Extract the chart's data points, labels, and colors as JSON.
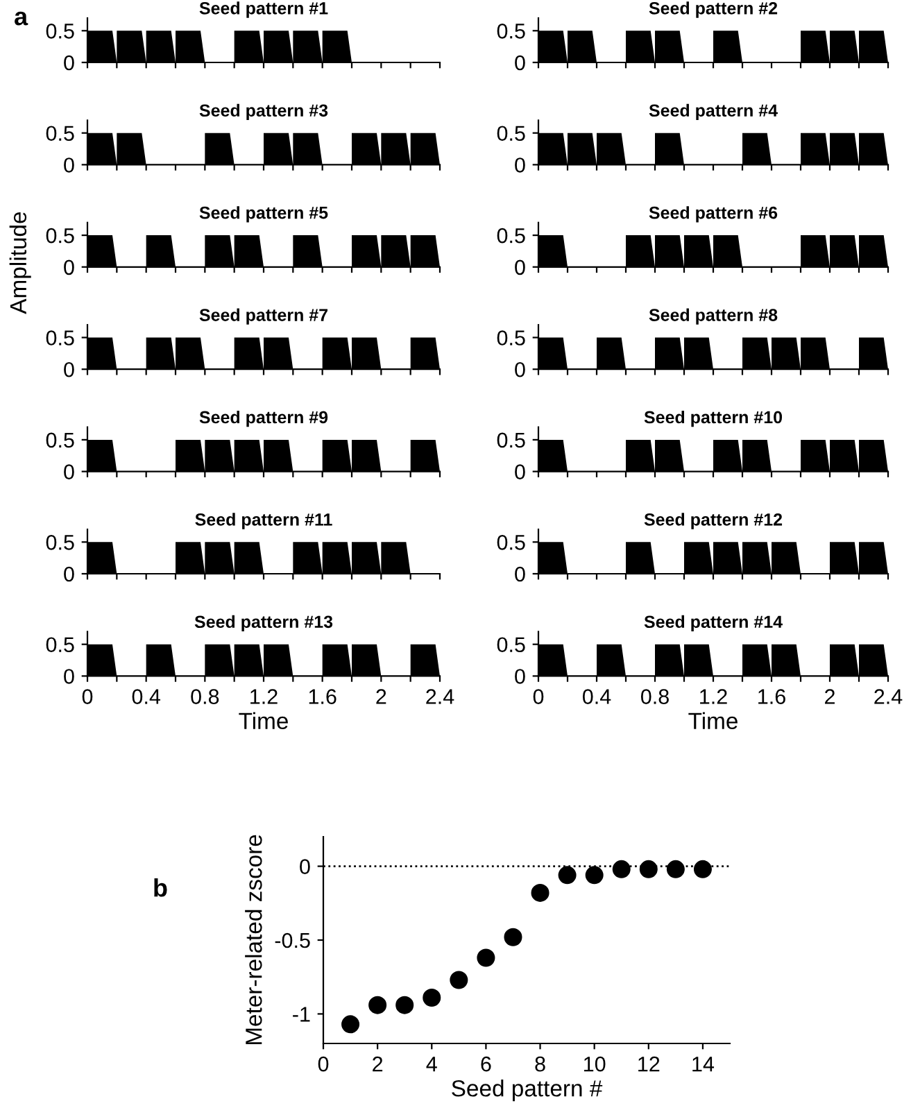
{
  "chart_data": [
    {
      "type": "area",
      "title": "Seed pattern #1",
      "annotations": [
        "a"
      ],
      "xlim": [
        0,
        2.4
      ],
      "ylim": [
        0,
        0.7
      ],
      "yticks": [
        0,
        0.5
      ],
      "xticks": [
        0,
        {
          "value": 0.2,
          "label": null
        },
        0.4,
        {
          "value": 0.6,
          "label": null
        },
        0.8,
        {
          "value": 1,
          "label": null
        },
        1.2,
        {
          "value": 1.4,
          "label": null
        },
        1.6,
        {
          "value": 1.8,
          "label": null
        },
        2,
        {
          "value": 2.2,
          "label": null
        },
        2.4
      ],
      "tick_labels": "y",
      "series": [
        {
          "color": "#000000",
          "x": [
            0,
            0,
            0.17,
            0.2,
            0.2,
            0.2,
            0.37,
            0.4,
            0.4,
            0.4,
            0.57,
            0.6,
            0.6,
            0.6,
            0.77,
            0.8,
            1,
            1,
            1.17,
            1.2,
            1.2,
            1.2,
            1.37,
            1.4,
            1.4,
            1.4,
            1.57,
            1.6,
            1.6,
            1.6,
            1.77,
            1.8
          ],
          "values": [
            0,
            0.5,
            0.5,
            0,
            0,
            0.5,
            0.5,
            0,
            0,
            0.5,
            0.5,
            0,
            0,
            0.5,
            0.5,
            0,
            0,
            0.5,
            0.5,
            0,
            0,
            0.5,
            0.5,
            0,
            0,
            0.5,
            0.5,
            0,
            0,
            0.5,
            0.5,
            0
          ]
        }
      ]
    },
    {
      "type": "area",
      "title": "Seed pattern #2",
      "xlim": [
        0,
        2.4
      ],
      "ylim": [
        0,
        0.7
      ],
      "yticks": [
        0,
        0.5
      ],
      "xticks": [
        0,
        {
          "value": 0.2,
          "label": null
        },
        0.4,
        {
          "value": 0.6,
          "label": null
        },
        0.8,
        {
          "value": 1,
          "label": null
        },
        1.2,
        {
          "value": 1.4,
          "label": null
        },
        1.6,
        {
          "value": 1.8,
          "label": null
        },
        2,
        {
          "value": 2.2,
          "label": null
        },
        2.4
      ],
      "tick_labels": "y",
      "series": [
        {
          "color": "#000000",
          "x": [
            0,
            0,
            0.17,
            0.2,
            0.2,
            0.2,
            0.37,
            0.4,
            0.6,
            0.6,
            0.77,
            0.8,
            0.8,
            0.8,
            0.97,
            1,
            1.2,
            1.2,
            1.37,
            1.4,
            1.8,
            1.8,
            1.97,
            2,
            2,
            2,
            2.17,
            2.2,
            2.2,
            2.2,
            2.37,
            2.4
          ],
          "values": [
            0,
            0.5,
            0.5,
            0,
            0,
            0.5,
            0.5,
            0,
            0,
            0.5,
            0.5,
            0,
            0,
            0.5,
            0.5,
            0,
            0,
            0.5,
            0.5,
            0,
            0,
            0.5,
            0.5,
            0,
            0,
            0.5,
            0.5,
            0,
            0,
            0.5,
            0.5,
            0
          ]
        }
      ]
    },
    {
      "type": "area",
      "title": "Seed pattern #3",
      "xlim": [
        0,
        2.4
      ],
      "ylim": [
        0,
        0.7
      ],
      "yticks": [
        0,
        0.5
      ],
      "xticks": [
        0,
        {
          "value": 0.2,
          "label": null
        },
        0.4,
        {
          "value": 0.6,
          "label": null
        },
        0.8,
        {
          "value": 1,
          "label": null
        },
        1.2,
        {
          "value": 1.4,
          "label": null
        },
        1.6,
        {
          "value": 1.8,
          "label": null
        },
        2,
        {
          "value": 2.2,
          "label": null
        },
        2.4
      ],
      "tick_labels": "y",
      "series": [
        {
          "color": "#000000",
          "x": [
            0,
            0,
            0.17,
            0.2,
            0.2,
            0.2,
            0.37,
            0.4,
            0.8,
            0.8,
            0.97,
            1,
            1.2,
            1.2,
            1.37,
            1.4,
            1.4,
            1.4,
            1.57,
            1.6,
            1.8,
            1.8,
            1.97,
            2,
            2,
            2,
            2.17,
            2.2,
            2.2,
            2.2,
            2.37,
            2.4
          ],
          "values": [
            0,
            0.5,
            0.5,
            0,
            0,
            0.5,
            0.5,
            0,
            0,
            0.5,
            0.5,
            0,
            0,
            0.5,
            0.5,
            0,
            0,
            0.5,
            0.5,
            0,
            0,
            0.5,
            0.5,
            0,
            0,
            0.5,
            0.5,
            0,
            0,
            0.5,
            0.5,
            0
          ]
        }
      ]
    },
    {
      "type": "area",
      "title": "Seed pattern #4",
      "xlim": [
        0,
        2.4
      ],
      "ylim": [
        0,
        0.7
      ],
      "yticks": [
        0,
        0.5
      ],
      "xticks": [
        0,
        {
          "value": 0.2,
          "label": null
        },
        0.4,
        {
          "value": 0.6,
          "label": null
        },
        0.8,
        {
          "value": 1,
          "label": null
        },
        1.2,
        {
          "value": 1.4,
          "label": null
        },
        1.6,
        {
          "value": 1.8,
          "label": null
        },
        2,
        {
          "value": 2.2,
          "label": null
        },
        2.4
      ],
      "tick_labels": "y",
      "series": [
        {
          "color": "#000000",
          "x": [
            0,
            0,
            0.17,
            0.2,
            0.2,
            0.2,
            0.37,
            0.4,
            0.4,
            0.4,
            0.57,
            0.6,
            0.8,
            0.8,
            0.97,
            1,
            1.4,
            1.4,
            1.57,
            1.6,
            1.8,
            1.8,
            1.97,
            2,
            2,
            2,
            2.17,
            2.2,
            2.2,
            2.2,
            2.37,
            2.4
          ],
          "values": [
            0,
            0.5,
            0.5,
            0,
            0,
            0.5,
            0.5,
            0,
            0,
            0.5,
            0.5,
            0,
            0,
            0.5,
            0.5,
            0,
            0,
            0.5,
            0.5,
            0,
            0,
            0.5,
            0.5,
            0,
            0,
            0.5,
            0.5,
            0,
            0,
            0.5,
            0.5,
            0
          ]
        }
      ]
    },
    {
      "type": "area",
      "title": "Seed pattern #5",
      "xlim": [
        0,
        2.4
      ],
      "ylim": [
        0,
        0.7
      ],
      "yticks": [
        0,
        0.5
      ],
      "xticks": [
        0,
        {
          "value": 0.2,
          "label": null
        },
        0.4,
        {
          "value": 0.6,
          "label": null
        },
        0.8,
        {
          "value": 1,
          "label": null
        },
        1.2,
        {
          "value": 1.4,
          "label": null
        },
        1.6,
        {
          "value": 1.8,
          "label": null
        },
        2,
        {
          "value": 2.2,
          "label": null
        },
        2.4
      ],
      "tick_labels": "y",
      "series": [
        {
          "color": "#000000",
          "x": [
            0,
            0,
            0.17,
            0.2,
            0.4,
            0.4,
            0.57,
            0.6,
            0.8,
            0.8,
            0.97,
            1,
            1,
            1,
            1.17,
            1.2,
            1.4,
            1.4,
            1.57,
            1.6,
            1.8,
            1.8,
            1.97,
            2,
            2,
            2,
            2.17,
            2.2,
            2.2,
            2.2,
            2.37,
            2.4
          ],
          "values": [
            0,
            0.5,
            0.5,
            0,
            0,
            0.5,
            0.5,
            0,
            0,
            0.5,
            0.5,
            0,
            0,
            0.5,
            0.5,
            0,
            0,
            0.5,
            0.5,
            0,
            0,
            0.5,
            0.5,
            0,
            0,
            0.5,
            0.5,
            0,
            0,
            0.5,
            0.5,
            0
          ]
        }
      ]
    },
    {
      "type": "area",
      "title": "Seed pattern #6",
      "xlim": [
        0,
        2.4
      ],
      "ylim": [
        0,
        0.7
      ],
      "yticks": [
        0,
        0.5
      ],
      "xticks": [
        0,
        {
          "value": 0.2,
          "label": null
        },
        0.4,
        {
          "value": 0.6,
          "label": null
        },
        0.8,
        {
          "value": 1,
          "label": null
        },
        1.2,
        {
          "value": 1.4,
          "label": null
        },
        1.6,
        {
          "value": 1.8,
          "label": null
        },
        2,
        {
          "value": 2.2,
          "label": null
        },
        2.4
      ],
      "tick_labels": "y",
      "series": [
        {
          "color": "#000000",
          "x": [
            0,
            0,
            0.17,
            0.2,
            0.6,
            0.6,
            0.77,
            0.8,
            0.8,
            0.8,
            0.97,
            1,
            1,
            1,
            1.17,
            1.2,
            1.2,
            1.2,
            1.37,
            1.4,
            1.8,
            1.8,
            1.97,
            2,
            2,
            2,
            2.17,
            2.2,
            2.2,
            2.2,
            2.37,
            2.4
          ],
          "values": [
            0,
            0.5,
            0.5,
            0,
            0,
            0.5,
            0.5,
            0,
            0,
            0.5,
            0.5,
            0,
            0,
            0.5,
            0.5,
            0,
            0,
            0.5,
            0.5,
            0,
            0,
            0.5,
            0.5,
            0,
            0,
            0.5,
            0.5,
            0,
            0,
            0.5,
            0.5,
            0
          ]
        }
      ]
    },
    {
      "type": "area",
      "title": "Seed pattern #7",
      "ylabel": "Amplitude",
      "xlim": [
        0,
        2.4
      ],
      "ylim": [
        0,
        0.7
      ],
      "yticks": [
        0,
        0.5
      ],
      "xticks": [
        0,
        {
          "value": 0.2,
          "label": null
        },
        0.4,
        {
          "value": 0.6,
          "label": null
        },
        0.8,
        {
          "value": 1,
          "label": null
        },
        1.2,
        {
          "value": 1.4,
          "label": null
        },
        1.6,
        {
          "value": 1.8,
          "label": null
        },
        2,
        {
          "value": 2.2,
          "label": null
        },
        2.4
      ],
      "tick_labels": "y",
      "series": [
        {
          "color": "#000000",
          "x": [
            0,
            0,
            0.17,
            0.2,
            0.4,
            0.4,
            0.57,
            0.6,
            0.6,
            0.6,
            0.77,
            0.8,
            1,
            1,
            1.17,
            1.2,
            1.2,
            1.2,
            1.37,
            1.4,
            1.6,
            1.6,
            1.77,
            1.8,
            1.8,
            1.8,
            1.97,
            2,
            2.2,
            2.2,
            2.37,
            2.4
          ],
          "values": [
            0,
            0.5,
            0.5,
            0,
            0,
            0.5,
            0.5,
            0,
            0,
            0.5,
            0.5,
            0,
            0,
            0.5,
            0.5,
            0,
            0,
            0.5,
            0.5,
            0,
            0,
            0.5,
            0.5,
            0,
            0,
            0.5,
            0.5,
            0,
            0,
            0.5,
            0.5,
            0
          ]
        }
      ]
    },
    {
      "type": "area",
      "title": "Seed pattern #8",
      "xlim": [
        0,
        2.4
      ],
      "ylim": [
        0,
        0.7
      ],
      "yticks": [
        0,
        0.5
      ],
      "xticks": [
        0,
        {
          "value": 0.2,
          "label": null
        },
        0.4,
        {
          "value": 0.6,
          "label": null
        },
        0.8,
        {
          "value": 1,
          "label": null
        },
        1.2,
        {
          "value": 1.4,
          "label": null
        },
        1.6,
        {
          "value": 1.8,
          "label": null
        },
        2,
        {
          "value": 2.2,
          "label": null
        },
        2.4
      ],
      "tick_labels": "y",
      "series": [
        {
          "color": "#000000",
          "x": [
            0,
            0,
            0.17,
            0.2,
            0.4,
            0.4,
            0.57,
            0.6,
            0.8,
            0.8,
            0.97,
            1,
            1,
            1,
            1.17,
            1.2,
            1.4,
            1.4,
            1.57,
            1.6,
            1.6,
            1.6,
            1.77,
            1.8,
            1.8,
            1.8,
            1.97,
            2,
            2.2,
            2.2,
            2.37,
            2.4
          ],
          "values": [
            0,
            0.5,
            0.5,
            0,
            0,
            0.5,
            0.5,
            0,
            0,
            0.5,
            0.5,
            0,
            0,
            0.5,
            0.5,
            0,
            0,
            0.5,
            0.5,
            0,
            0,
            0.5,
            0.5,
            0,
            0,
            0.5,
            0.5,
            0,
            0,
            0.5,
            0.5,
            0
          ]
        }
      ]
    },
    {
      "type": "area",
      "title": "Seed pattern #9",
      "xlim": [
        0,
        2.4
      ],
      "ylim": [
        0,
        0.7
      ],
      "yticks": [
        0,
        0.5
      ],
      "xticks": [
        0,
        {
          "value": 0.2,
          "label": null
        },
        0.4,
        {
          "value": 0.6,
          "label": null
        },
        0.8,
        {
          "value": 1,
          "label": null
        },
        1.2,
        {
          "value": 1.4,
          "label": null
        },
        1.6,
        {
          "value": 1.8,
          "label": null
        },
        2,
        {
          "value": 2.2,
          "label": null
        },
        2.4
      ],
      "tick_labels": "y",
      "series": [
        {
          "color": "#000000",
          "x": [
            0,
            0,
            0.17,
            0.2,
            0.6,
            0.6,
            0.77,
            0.8,
            0.8,
            0.8,
            0.97,
            1,
            1,
            1,
            1.17,
            1.2,
            1.2,
            1.2,
            1.37,
            1.4,
            1.6,
            1.6,
            1.77,
            1.8,
            1.8,
            1.8,
            1.97,
            2,
            2.2,
            2.2,
            2.37,
            2.4
          ],
          "values": [
            0,
            0.5,
            0.5,
            0,
            0,
            0.5,
            0.5,
            0,
            0,
            0.5,
            0.5,
            0,
            0,
            0.5,
            0.5,
            0,
            0,
            0.5,
            0.5,
            0,
            0,
            0.5,
            0.5,
            0,
            0,
            0.5,
            0.5,
            0,
            0,
            0.5,
            0.5,
            0
          ]
        }
      ]
    },
    {
      "type": "area",
      "title": "Seed pattern #10",
      "xlim": [
        0,
        2.4
      ],
      "ylim": [
        0,
        0.7
      ],
      "yticks": [
        0,
        0.5
      ],
      "xticks": [
        0,
        {
          "value": 0.2,
          "label": null
        },
        0.4,
        {
          "value": 0.6,
          "label": null
        },
        0.8,
        {
          "value": 1,
          "label": null
        },
        1.2,
        {
          "value": 1.4,
          "label": null
        },
        1.6,
        {
          "value": 1.8,
          "label": null
        },
        2,
        {
          "value": 2.2,
          "label": null
        },
        2.4
      ],
      "tick_labels": "y",
      "series": [
        {
          "color": "#000000",
          "x": [
            0,
            0,
            0.17,
            0.2,
            0.6,
            0.6,
            0.77,
            0.8,
            0.8,
            0.8,
            0.97,
            1,
            1.2,
            1.2,
            1.37,
            1.4,
            1.4,
            1.4,
            1.57,
            1.6,
            1.8,
            1.8,
            1.97,
            2,
            2,
            2,
            2.17,
            2.2,
            2.2,
            2.2,
            2.37,
            2.4
          ],
          "values": [
            0,
            0.5,
            0.5,
            0,
            0,
            0.5,
            0.5,
            0,
            0,
            0.5,
            0.5,
            0,
            0,
            0.5,
            0.5,
            0,
            0,
            0.5,
            0.5,
            0,
            0,
            0.5,
            0.5,
            0,
            0,
            0.5,
            0.5,
            0,
            0,
            0.5,
            0.5,
            0
          ]
        }
      ]
    },
    {
      "type": "area",
      "title": "Seed pattern #11",
      "xlim": [
        0,
        2.4
      ],
      "ylim": [
        0,
        0.7
      ],
      "yticks": [
        0,
        0.5
      ],
      "xticks": [
        0,
        {
          "value": 0.2,
          "label": null
        },
        0.4,
        {
          "value": 0.6,
          "label": null
        },
        0.8,
        {
          "value": 1,
          "label": null
        },
        1.2,
        {
          "value": 1.4,
          "label": null
        },
        1.6,
        {
          "value": 1.8,
          "label": null
        },
        2,
        {
          "value": 2.2,
          "label": null
        },
        2.4
      ],
      "tick_labels": "y",
      "series": [
        {
          "color": "#000000",
          "x": [
            0,
            0,
            0.17,
            0.2,
            0.6,
            0.6,
            0.77,
            0.8,
            0.8,
            0.8,
            0.97,
            1,
            1,
            1,
            1.17,
            1.2,
            1.4,
            1.4,
            1.57,
            1.6,
            1.6,
            1.6,
            1.77,
            1.8,
            1.8,
            1.8,
            1.97,
            2,
            2,
            2,
            2.17,
            2.2
          ],
          "values": [
            0,
            0.5,
            0.5,
            0,
            0,
            0.5,
            0.5,
            0,
            0,
            0.5,
            0.5,
            0,
            0,
            0.5,
            0.5,
            0,
            0,
            0.5,
            0.5,
            0,
            0,
            0.5,
            0.5,
            0,
            0,
            0.5,
            0.5,
            0,
            0,
            0.5,
            0.5,
            0
          ]
        }
      ]
    },
    {
      "type": "area",
      "title": "Seed pattern #12",
      "xlim": [
        0,
        2.4
      ],
      "ylim": [
        0,
        0.7
      ],
      "yticks": [
        0,
        0.5
      ],
      "xticks": [
        0,
        {
          "value": 0.2,
          "label": null
        },
        0.4,
        {
          "value": 0.6,
          "label": null
        },
        0.8,
        {
          "value": 1,
          "label": null
        },
        1.2,
        {
          "value": 1.4,
          "label": null
        },
        1.6,
        {
          "value": 1.8,
          "label": null
        },
        2,
        {
          "value": 2.2,
          "label": null
        },
        2.4
      ],
      "tick_labels": "y",
      "series": [
        {
          "color": "#000000",
          "x": [
            0,
            0,
            0.17,
            0.2,
            0.6,
            0.6,
            0.77,
            0.8,
            1,
            1,
            1.17,
            1.2,
            1.2,
            1.2,
            1.37,
            1.4,
            1.4,
            1.4,
            1.57,
            1.6,
            1.6,
            1.6,
            1.77,
            1.8,
            2,
            2,
            2.17,
            2.2,
            2.2,
            2.2,
            2.37,
            2.4
          ],
          "values": [
            0,
            0.5,
            0.5,
            0,
            0,
            0.5,
            0.5,
            0,
            0,
            0.5,
            0.5,
            0,
            0,
            0.5,
            0.5,
            0,
            0,
            0.5,
            0.5,
            0,
            0,
            0.5,
            0.5,
            0,
            0,
            0.5,
            0.5,
            0,
            0,
            0.5,
            0.5,
            0
          ]
        }
      ]
    },
    {
      "type": "area",
      "title": "Seed pattern #13",
      "xlabel": "Time",
      "xlim": [
        0,
        2.4
      ],
      "ylim": [
        0,
        0.7
      ],
      "yticks": [
        0,
        0.5
      ],
      "xticks": [
        0,
        {
          "value": 0.2,
          "label": null
        },
        0.4,
        {
          "value": 0.6,
          "label": null
        },
        0.8,
        {
          "value": 1,
          "label": null
        },
        1.2,
        {
          "value": 1.4,
          "label": null
        },
        1.6,
        {
          "value": 1.8,
          "label": null
        },
        2,
        {
          "value": 2.2,
          "label": null
        },
        2.4
      ],
      "series": [
        {
          "color": "#000000",
          "x": [
            0,
            0,
            0.17,
            0.2,
            0.4,
            0.4,
            0.57,
            0.6,
            0.8,
            0.8,
            0.97,
            1,
            1,
            1,
            1.17,
            1.2,
            1.2,
            1.2,
            1.37,
            1.4,
            1.6,
            1.6,
            1.77,
            1.8,
            1.8,
            1.8,
            1.97,
            2,
            2.2,
            2.2,
            2.37,
            2.4
          ],
          "values": [
            0,
            0.5,
            0.5,
            0,
            0,
            0.5,
            0.5,
            0,
            0,
            0.5,
            0.5,
            0,
            0,
            0.5,
            0.5,
            0,
            0,
            0.5,
            0.5,
            0,
            0,
            0.5,
            0.5,
            0,
            0,
            0.5,
            0.5,
            0,
            0,
            0.5,
            0.5,
            0
          ]
        }
      ]
    },
    {
      "type": "area",
      "title": "Seed pattern #14",
      "xlabel": "Time",
      "xlim": [
        0,
        2.4
      ],
      "ylim": [
        0,
        0.7
      ],
      "yticks": [
        0,
        0.5
      ],
      "xticks": [
        0,
        {
          "value": 0.2,
          "label": null
        },
        0.4,
        {
          "value": 0.6,
          "label": null
        },
        0.8,
        {
          "value": 1,
          "label": null
        },
        1.2,
        {
          "value": 1.4,
          "label": null
        },
        1.6,
        {
          "value": 1.8,
          "label": null
        },
        2,
        {
          "value": 2.2,
          "label": null
        },
        2.4
      ],
      "series": [
        {
          "color": "#000000",
          "x": [
            0,
            0,
            0.17,
            0.2,
            0.4,
            0.4,
            0.57,
            0.6,
            0.8,
            0.8,
            0.97,
            1,
            1,
            1,
            1.17,
            1.2,
            1.4,
            1.4,
            1.57,
            1.6,
            1.6,
            1.6,
            1.77,
            1.8,
            2,
            2,
            2.17,
            2.2,
            2.2,
            2.2,
            2.37,
            2.4
          ],
          "values": [
            0,
            0.5,
            0.5,
            0,
            0,
            0.5,
            0.5,
            0,
            0,
            0.5,
            0.5,
            0,
            0,
            0.5,
            0.5,
            0,
            0,
            0.5,
            0.5,
            0,
            0,
            0.5,
            0.5,
            0,
            0,
            0.5,
            0.5,
            0,
            0,
            0.5,
            0.5,
            0
          ]
        }
      ]
    },
    {
      "type": "scatter",
      "annotations": [
        "b"
      ],
      "xlabel": "Seed pattern #",
      "ylabel": "Meter-related zscore",
      "marker": "circle",
      "xlim": [
        0,
        15
      ],
      "ylim": [
        -1.2,
        0.2
      ],
      "xticks": [
        0,
        2,
        4,
        6,
        8,
        10,
        12,
        14
      ],
      "yticks": [
        -1,
        -0.5,
        0
      ],
      "ref_lines": [
        {
          "axis": "y",
          "value": 0,
          "line_style": "dotted",
          "color": "#000000"
        }
      ],
      "series": [
        {
          "color": "#000000",
          "x": [
            1,
            2,
            3,
            4,
            5,
            6,
            7,
            8,
            9,
            10,
            11,
            12,
            13,
            14
          ],
          "values": [
            -1.07,
            -0.94,
            -0.94,
            -0.89,
            -0.77,
            -0.62,
            -0.48,
            -0.18,
            -0.06,
            -0.06,
            -0.02,
            -0.02,
            -0.02,
            -0.02
          ]
        }
      ]
    }
  ]
}
